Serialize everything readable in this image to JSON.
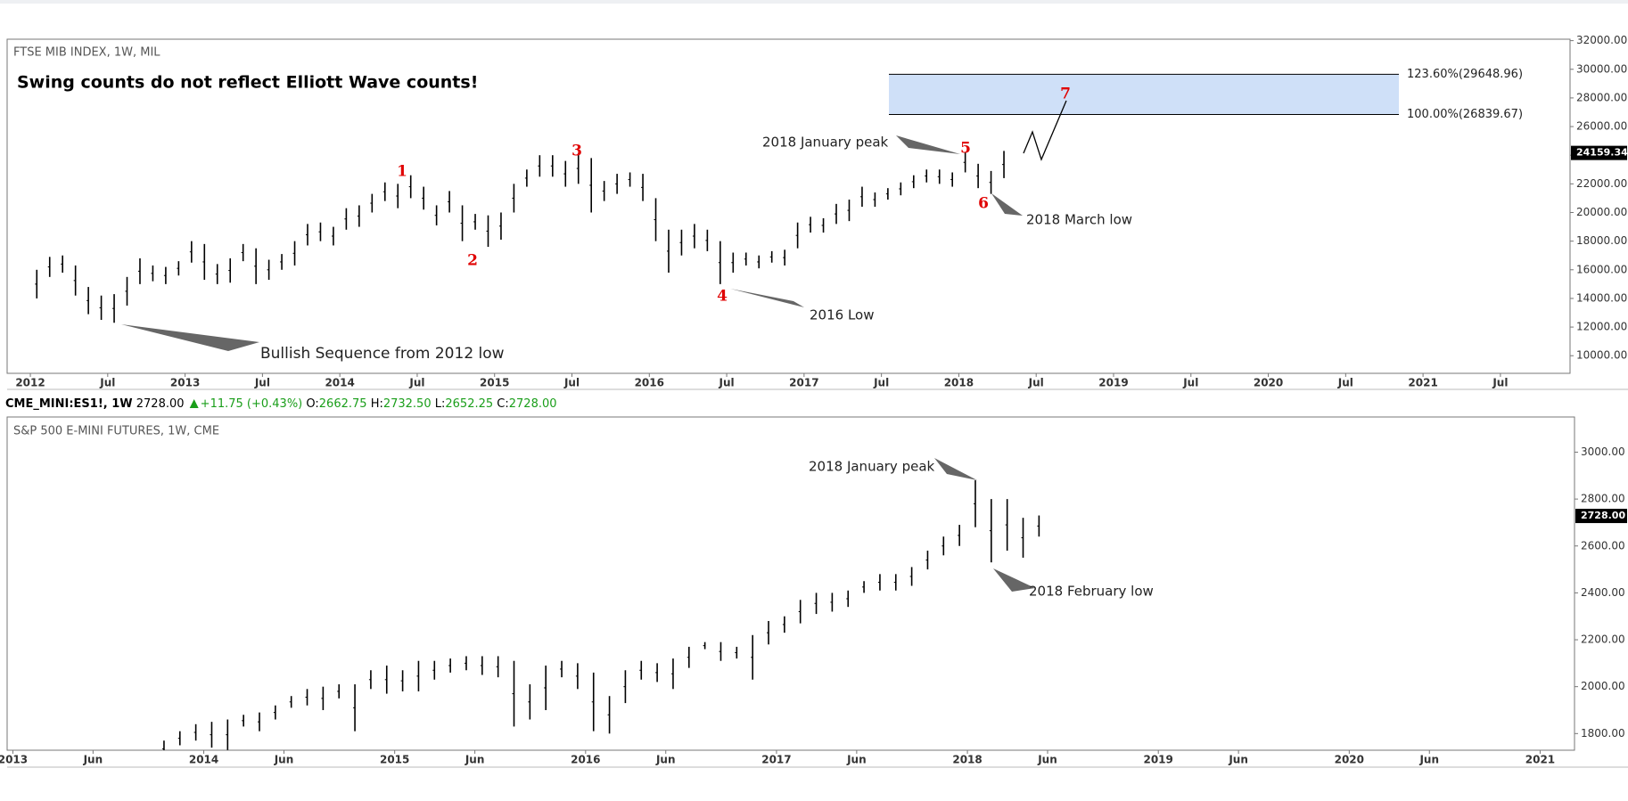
{
  "chart_data": [
    {
      "type": "range",
      "title": "FTSE MIB INDEX, 1W, MIL",
      "subtitle": "Swing counts do not reflect Elliott Wave counts!",
      "x": [
        "2012-01",
        "2012-02",
        "2012-03",
        "2012-04",
        "2012-05",
        "2012-06",
        "2012-07",
        "2012-08",
        "2012-09",
        "2012-10",
        "2012-11",
        "2012-12",
        "2013-01",
        "2013-02",
        "2013-03",
        "2013-04",
        "2013-05",
        "2013-06",
        "2013-07",
        "2013-08",
        "2013-09",
        "2013-10",
        "2013-11",
        "2013-12",
        "2014-01",
        "2014-02",
        "2014-03",
        "2014-04",
        "2014-05",
        "2014-06",
        "2014-07",
        "2014-08",
        "2014-09",
        "2014-10",
        "2014-11",
        "2014-12",
        "2015-01",
        "2015-02",
        "2015-03",
        "2015-04",
        "2015-05",
        "2015-06",
        "2015-07",
        "2015-08",
        "2015-09",
        "2015-10",
        "2015-11",
        "2015-12",
        "2016-01",
        "2016-02",
        "2016-03",
        "2016-04",
        "2016-05",
        "2016-06",
        "2016-07",
        "2016-08",
        "2016-09",
        "2016-10",
        "2016-11",
        "2016-12",
        "2017-01",
        "2017-02",
        "2017-03",
        "2017-04",
        "2017-05",
        "2017-06",
        "2017-07",
        "2017-08",
        "2017-09",
        "2017-10",
        "2017-11",
        "2017-12",
        "2018-01",
        "2018-02",
        "2018-03",
        "2018-04"
      ],
      "high": [
        16000,
        16900,
        17000,
        16300,
        14800,
        14200,
        14300,
        15500,
        16800,
        16300,
        16200,
        16600,
        18000,
        17800,
        16400,
        16800,
        17800,
        17500,
        16700,
        17100,
        18000,
        19200,
        19300,
        19000,
        20300,
        20500,
        21300,
        22100,
        22000,
        22600,
        21800,
        20500,
        21500,
        20500,
        19900,
        19800,
        20000,
        22000,
        23000,
        24000,
        24000,
        23600,
        24150,
        23800,
        22200,
        22700,
        22800,
        22700,
        21000,
        18800,
        18800,
        19200,
        18800,
        18000,
        17200,
        17200,
        17000,
        17300,
        17400,
        19300,
        19700,
        19600,
        20600,
        20900,
        21800,
        21400,
        21700,
        22100,
        22600,
        23000,
        23000,
        22800,
        24200,
        23400,
        22900,
        24300
      ],
      "low": [
        14000,
        15500,
        15800,
        14200,
        12900,
        12500,
        12300,
        13500,
        15000,
        15200,
        15000,
        15600,
        16500,
        15300,
        15000,
        15100,
        16600,
        15000,
        15300,
        16000,
        16300,
        17700,
        18000,
        17700,
        18800,
        19000,
        20000,
        20800,
        20300,
        21000,
        20200,
        19100,
        20000,
        18000,
        18800,
        17600,
        18100,
        20000,
        21800,
        22500,
        22500,
        21800,
        22000,
        20000,
        20800,
        21300,
        21800,
        20800,
        18000,
        15800,
        17000,
        17500,
        17300,
        15000,
        15800,
        16300,
        16100,
        16500,
        16300,
        17500,
        18600,
        18600,
        19200,
        19400,
        20400,
        20400,
        20900,
        21200,
        21700,
        22100,
        22000,
        21800,
        22800,
        21700,
        21300,
        22400
      ],
      "color": "#000000",
      "xlim": [
        2011.85,
        2021.95
      ],
      "xticks": [
        2012,
        {
          "value": 2012.5,
          "label": "Jul"
        },
        2013,
        {
          "value": 2013.5,
          "label": "Jul"
        },
        2014,
        {
          "value": 2014.5,
          "label": "Jul"
        },
        2015,
        {
          "value": 2015.5,
          "label": "Jul"
        },
        2016,
        {
          "value": 2016.5,
          "label": "Jul"
        },
        2017,
        {
          "value": 2017.5,
          "label": "Jul"
        },
        2018,
        {
          "value": 2018.5,
          "label": "Jul"
        },
        2019,
        {
          "value": 2019.5,
          "label": "Jul"
        },
        2020,
        {
          "value": 2020.5,
          "label": "Jul"
        },
        2021,
        {
          "value": 2021.5,
          "label": "Jul"
        }
      ],
      "ylim": [
        8770,
        32100
      ],
      "yticks": [
        {
          "value": 10000,
          "label": "10000.00"
        },
        {
          "value": 12000,
          "label": "12000.00"
        },
        {
          "value": 14000,
          "label": "14000.00"
        },
        {
          "value": 16000,
          "label": "16000.00"
        },
        {
          "value": 18000,
          "label": "18000.00"
        },
        {
          "value": 20000,
          "label": "20000.00"
        },
        {
          "value": 22000,
          "label": "22000.00"
        },
        {
          "value": 24000,
          "label": "24000.00"
        },
        {
          "value": 26000,
          "label": "26000.00"
        },
        {
          "value": 28000,
          "label": "28000.00"
        },
        {
          "value": 30000,
          "label": "30000.00"
        },
        {
          "value": 32000,
          "label": "32000.00"
        }
      ],
      "last_price": 24159.34,
      "fib_levels": [
        {
          "value": 29648.96,
          "label": "123.60%(29648.96)"
        },
        {
          "value": 26839.67,
          "label": "100.00%(26839.67)"
        }
      ],
      "fib_color": "#cfe0f8",
      "wave_labels": [
        "1",
        "2",
        "3",
        "4",
        "5",
        "6",
        "7"
      ],
      "annotations": [
        "2018 January peak",
        "2018 March low",
        "2016 Low",
        "Bullish Sequence from 2012 low"
      ]
    },
    {
      "type": "range",
      "title": "S&P 500 E-MINI FUTURES, 1W, CME",
      "x": [
        "2013-10",
        "2013-11",
        "2013-12",
        "2014-01",
        "2014-02",
        "2014-03",
        "2014-04",
        "2014-05",
        "2014-06",
        "2014-07",
        "2014-08",
        "2014-09",
        "2014-10",
        "2014-11",
        "2014-12",
        "2015-01",
        "2015-02",
        "2015-03",
        "2015-04",
        "2015-05",
        "2015-06",
        "2015-07",
        "2015-08",
        "2015-09",
        "2015-10",
        "2015-11",
        "2015-12",
        "2016-01",
        "2016-02",
        "2016-03",
        "2016-04",
        "2016-05",
        "2016-06",
        "2016-07",
        "2016-08",
        "2016-09",
        "2016-10",
        "2016-11",
        "2016-12",
        "2017-01",
        "2017-02",
        "2017-03",
        "2017-04",
        "2017-05",
        "2017-06",
        "2017-07",
        "2017-08",
        "2017-09",
        "2017-10",
        "2017-11",
        "2017-12",
        "2018-01",
        "2018-02",
        "2018-03",
        "2018-04",
        "2018-05"
      ],
      "high": [
        1770,
        1810,
        1840,
        1850,
        1860,
        1880,
        1890,
        1920,
        1960,
        1990,
        2000,
        2010,
        2010,
        2070,
        2090,
        2070,
        2110,
        2110,
        2120,
        2130,
        2130,
        2130,
        2110,
        2010,
        2090,
        2110,
        2100,
        2060,
        1960,
        2070,
        2110,
        2100,
        2120,
        2170,
        2190,
        2190,
        2170,
        2220,
        2280,
        2300,
        2370,
        2400,
        2400,
        2410,
        2450,
        2480,
        2480,
        2510,
        2580,
        2640,
        2690,
        2880,
        2800,
        2800,
        2720,
        2730
      ],
      "low": [
        1700,
        1750,
        1770,
        1740,
        1730,
        1830,
        1810,
        1860,
        1910,
        1920,
        1900,
        1950,
        1810,
        1990,
        1970,
        1980,
        1980,
        2030,
        2060,
        2070,
        2050,
        2040,
        1830,
        1860,
        1900,
        2040,
        1990,
        1810,
        1800,
        1930,
        2030,
        2020,
        1990,
        2080,
        2160,
        2110,
        2120,
        2030,
        2180,
        2230,
        2270,
        2310,
        2320,
        2340,
        2400,
        2410,
        2410,
        2430,
        2500,
        2560,
        2600,
        2680,
        2530,
        2580,
        2550,
        2640
      ],
      "color": "#000000",
      "xlim": [
        2012.97,
        2021.18
      ],
      "xticks": [
        2013,
        {
          "value": 2013.42,
          "label": "Jun"
        },
        2014,
        {
          "value": 2014.42,
          "label": "Jun"
        },
        2015,
        {
          "value": 2015.42,
          "label": "Jun"
        },
        2016,
        {
          "value": 2016.42,
          "label": "Jun"
        },
        2017,
        {
          "value": 2017.42,
          "label": "Jun"
        },
        2018,
        {
          "value": 2018.42,
          "label": "Jun"
        },
        2019,
        {
          "value": 2019.42,
          "label": "Jun"
        },
        2020,
        {
          "value": 2020.42,
          "label": "Jun"
        },
        2021
      ],
      "ylim": [
        1729,
        3150
      ],
      "yticks": [
        {
          "value": 1800,
          "label": "1800.00"
        },
        {
          "value": 2000,
          "label": "2000.00"
        },
        {
          "value": 2200,
          "label": "2200.00"
        },
        {
          "value": 2400,
          "label": "2400.00"
        },
        {
          "value": 2600,
          "label": "2600.00"
        },
        {
          "value": 2800,
          "label": "2800.00"
        },
        {
          "value": 3000,
          "label": "3000.00"
        }
      ],
      "last_price": {
        "value": 2728,
        "label": "2728.00"
      },
      "header": {
        "symbol": "CME_MINI:ES1!, 1W",
        "last": "2728.00",
        "change": "+11.75 (+0.43%)",
        "open_label": "O:",
        "open": "2662.75",
        "high_label": "H:",
        "high": "2732.50",
        "low_label": "L:",
        "low": "2652.25",
        "close_label": "C:",
        "close": "2728.00"
      },
      "annotations": [
        "2018 January peak",
        "2018 February low"
      ]
    }
  ]
}
